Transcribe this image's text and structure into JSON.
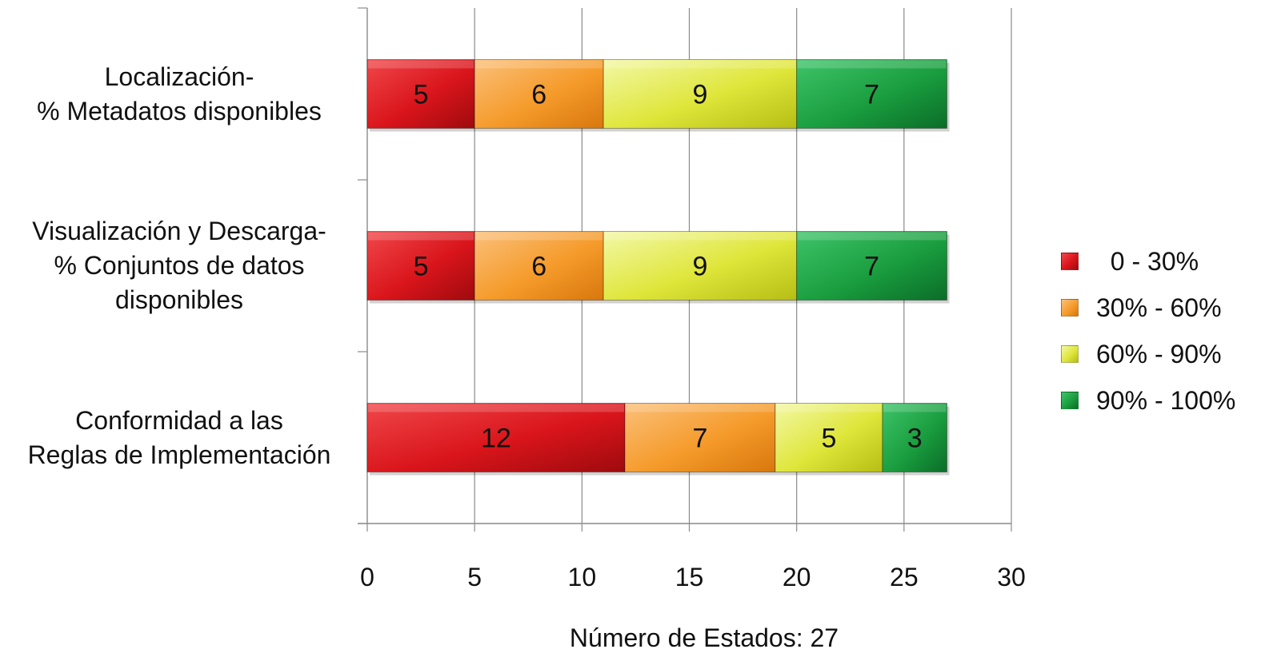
{
  "chart_data": {
    "type": "bar",
    "orientation": "horizontal",
    "stacked": true,
    "categories": [
      [
        "Localización-",
        "% Metadatos disponibles"
      ],
      [
        "Visualización y Descarga-",
        "% Conjuntos de datos",
        "disponibles"
      ],
      [
        "Conformidad a las",
        "Reglas de Implementación"
      ]
    ],
    "series": [
      {
        "name": "0 - 30%",
        "values": [
          5,
          5,
          12
        ],
        "color": "#d9151b"
      },
      {
        "name": "30% - 60%",
        "values": [
          6,
          6,
          7
        ],
        "color": "#f59b2b"
      },
      {
        "name": "60% - 90%",
        "values": [
          9,
          9,
          5
        ],
        "color": "#d6e028"
      },
      {
        "name": "90% - 100%",
        "values": [
          7,
          7,
          3
        ],
        "color": "#1a9e3f"
      }
    ],
    "xlabel": "Número de Estados: 27",
    "xlim": [
      0,
      30
    ],
    "xticks": [
      0,
      5,
      10,
      15,
      20,
      25,
      30
    ],
    "grid": "vertical",
    "legend_position": "right"
  }
}
